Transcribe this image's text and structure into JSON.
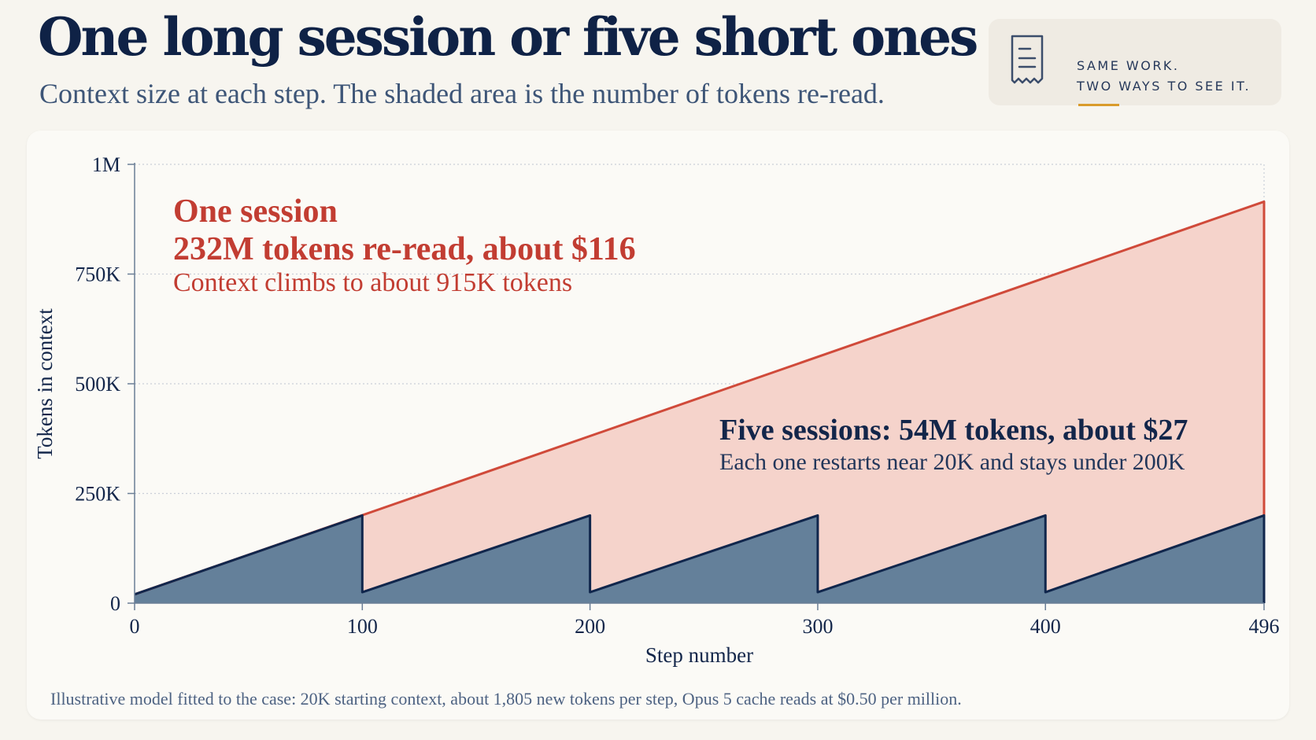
{
  "header": {
    "title": "One long session or five short ones",
    "subtitle": "Context size at each step. The shaded area is the number of tokens re-read."
  },
  "note_card": {
    "line1": "SAME WORK.",
    "line2": "TWO WAYS TO SEE IT.",
    "icon": "receipt-icon"
  },
  "annotations": {
    "one_session_title": "One session",
    "one_session_tokens": "232M tokens re-read, about $116",
    "one_session_context": "Context climbs to about 915K tokens",
    "five_sessions_title": "Five sessions: 54M tokens, about $27",
    "five_sessions_sub": "Each one restarts near 20K and stays under 200K"
  },
  "footnote": "Illustrative model fitted to the case: 20K starting context, about 1,805 new tokens per step, Opus 5 cache reads at $0.50 per million.",
  "colors": {
    "one_session_line": "#d04a3a",
    "one_session_fill": "#f5d3cb",
    "five_sessions_line": "#10264c",
    "five_sessions_fill": "#64809a",
    "axis": "#6b7e96",
    "grid": "#c9cfd8",
    "tick_text": "#13264a"
  },
  "chart_data": {
    "type": "area",
    "title": "One long session or five short ones",
    "xlabel": "Step number",
    "ylabel": "Tokens in context",
    "xlim": [
      0,
      496
    ],
    "ylim": [
      0,
      1000000
    ],
    "x_ticks": [
      0,
      100,
      200,
      300,
      400,
      496
    ],
    "x_tick_labels": [
      "0",
      "100",
      "200",
      "300",
      "400",
      "496"
    ],
    "y_ticks": [
      0,
      250000,
      500000,
      750000,
      1000000
    ],
    "y_tick_labels": [
      "0",
      "250K",
      "500K",
      "750K",
      "1M"
    ],
    "grid": true,
    "series": [
      {
        "name": "One session",
        "points": [
          [
            0,
            20000
          ],
          [
            496,
            915000
          ]
        ]
      },
      {
        "name": "Five sessions",
        "points": [
          [
            0,
            20000
          ],
          [
            100,
            200000
          ],
          [
            100,
            25000
          ],
          [
            200,
            200000
          ],
          [
            200,
            25000
          ],
          [
            300,
            200000
          ],
          [
            300,
            25000
          ],
          [
            400,
            200000
          ],
          [
            400,
            25000
          ],
          [
            496,
            200000
          ]
        ]
      }
    ]
  }
}
